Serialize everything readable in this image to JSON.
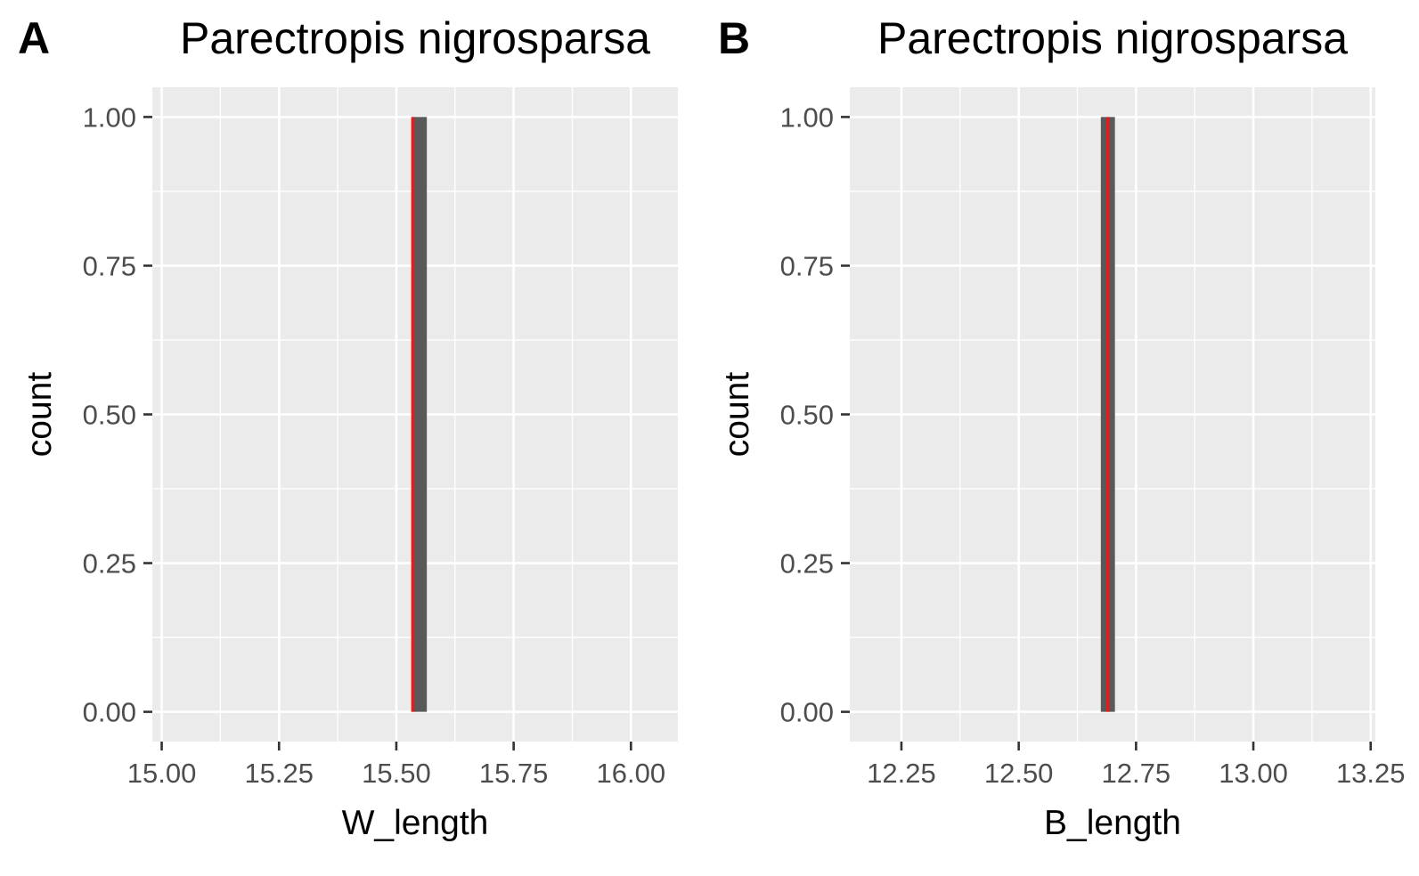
{
  "chart_data": [
    {
      "panel_label": "A",
      "type": "bar",
      "title": "Parectropis nigrosparsa",
      "xlabel": "W_length",
      "ylabel": "count",
      "xlim": [
        14.98,
        16.1
      ],
      "ylim": [
        -0.05,
        1.05
      ],
      "xticks": [
        "15.00",
        "15.25",
        "15.50",
        "15.75",
        "16.00"
      ],
      "xtick_values": [
        15.0,
        15.25,
        15.5,
        15.75,
        16.0
      ],
      "yticks": [
        "0.00",
        "0.25",
        "0.50",
        "0.75",
        "1.00"
      ],
      "ytick_values": [
        0.0,
        0.25,
        0.5,
        0.75,
        1.0
      ],
      "bars": [
        {
          "xmin": 15.535,
          "xmax": 15.565,
          "count": 1
        }
      ],
      "reference_line": {
        "x": 15.535,
        "color": "#e41a1c"
      },
      "grid": true
    },
    {
      "panel_label": "B",
      "type": "bar",
      "title": "Parectropis nigrosparsa",
      "xlabel": "B_length",
      "ylabel": "count",
      "xlim": [
        12.14,
        13.26
      ],
      "ylim": [
        -0.05,
        1.05
      ],
      "xticks": [
        "12.25",
        "12.50",
        "12.75",
        "13.00",
        "13.25"
      ],
      "xtick_values": [
        12.25,
        12.5,
        12.75,
        13.0,
        13.25
      ],
      "yticks": [
        "0.00",
        "0.25",
        "0.50",
        "0.75",
        "1.00"
      ],
      "ytick_values": [
        0.0,
        0.25,
        0.5,
        0.75,
        1.0
      ],
      "bars": [
        {
          "xmin": 12.675,
          "xmax": 12.705,
          "count": 1
        }
      ],
      "reference_line": {
        "x": 12.69,
        "color": "#e41a1c"
      },
      "grid": true
    }
  ],
  "colors": {
    "panel_background": "#ebebeb",
    "grid": "#ffffff",
    "bar": "#595959",
    "reference": "#e41a1c"
  }
}
